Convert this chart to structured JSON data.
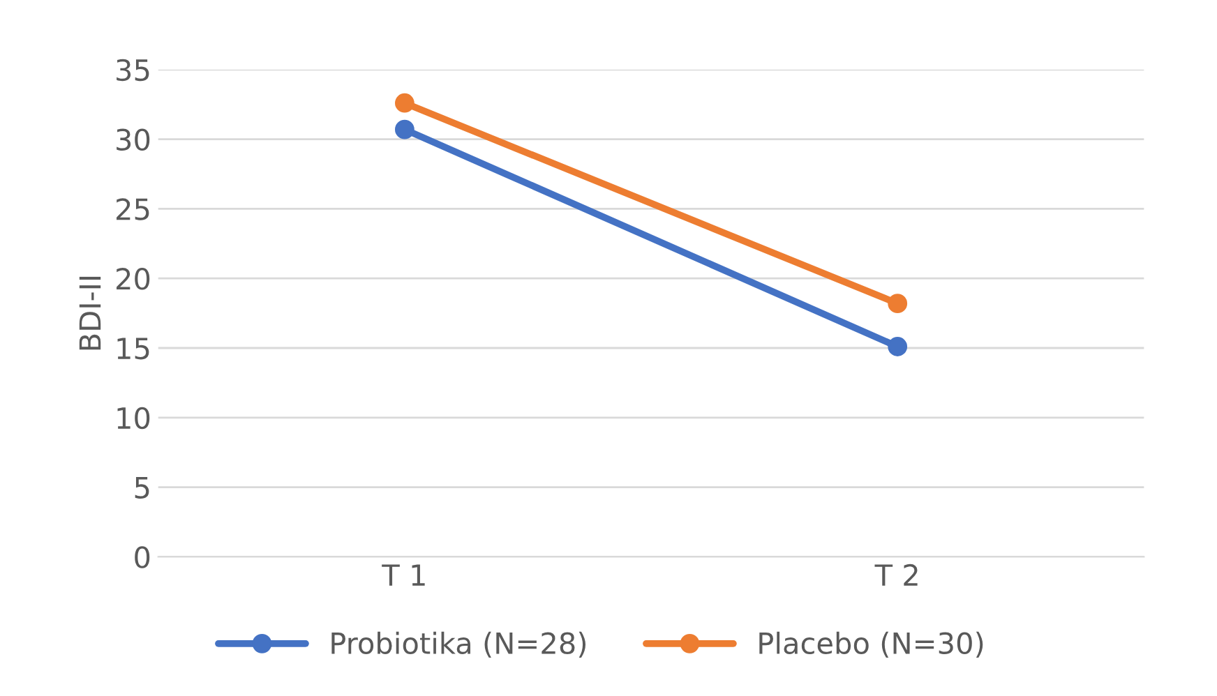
{
  "chart_data": {
    "type": "line",
    "ylabel": "BDI-II",
    "categories": [
      "T 1",
      "T 2"
    ],
    "series": [
      {
        "name": "Probiotika (N=28)",
        "color": "#4472c4",
        "values": [
          30.7,
          15.1
        ]
      },
      {
        "name": "Placebo (N=30)",
        "color": "#ed7d31",
        "values": [
          32.6,
          18.2
        ]
      }
    ],
    "ylim": [
      0,
      35
    ],
    "yticks": [
      0,
      5,
      10,
      15,
      20,
      25,
      30,
      35
    ],
    "grid": "y",
    "legend": "bottom",
    "marker": "circle",
    "line_style": "solid"
  }
}
